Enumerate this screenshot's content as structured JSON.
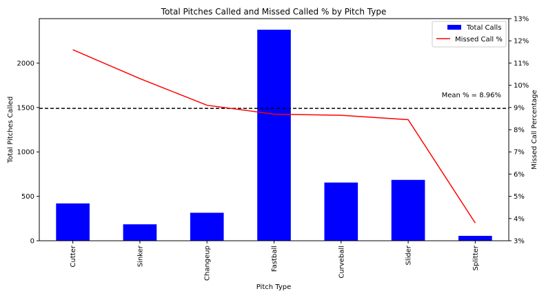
{
  "chart_data": {
    "type": "bar",
    "title": "Total Pitches Called and Missed Called % by Pitch Type",
    "xlabel": "Pitch Type",
    "ylabel": "Total Pitches Called",
    "ylabel_right": "Missed Call Percentage",
    "categories": [
      "Cutter",
      "Sinker",
      "Changeup",
      "Fastball",
      "Curveball",
      "Slider",
      "Splitter"
    ],
    "series": [
      {
        "name": "Total Calls",
        "type": "bar",
        "axis": "left",
        "color": "#0000ff",
        "values": [
          420,
          185,
          315,
          2375,
          655,
          685,
          55
        ]
      },
      {
        "name": "Missed Call %",
        "type": "line",
        "axis": "right",
        "color": "#ff0000",
        "values": [
          11.6,
          10.3,
          9.1,
          8.7,
          8.65,
          8.45,
          3.8
        ]
      }
    ],
    "ylim": [
      0,
      2500
    ],
    "yticks": [
      0,
      500,
      1000,
      1500,
      2000
    ],
    "ylim_right": [
      3,
      13
    ],
    "yticks_right": [
      3,
      4,
      5,
      6,
      7,
      8,
      9,
      10,
      11,
      12,
      13
    ],
    "ytick_suffix_right": "%",
    "reference_line": {
      "value": 8.96,
      "axis": "right",
      "style": "dashed",
      "color": "#000000"
    },
    "annotation": "Mean % = 8.96%",
    "legend_position": "top-right",
    "grid": false
  }
}
